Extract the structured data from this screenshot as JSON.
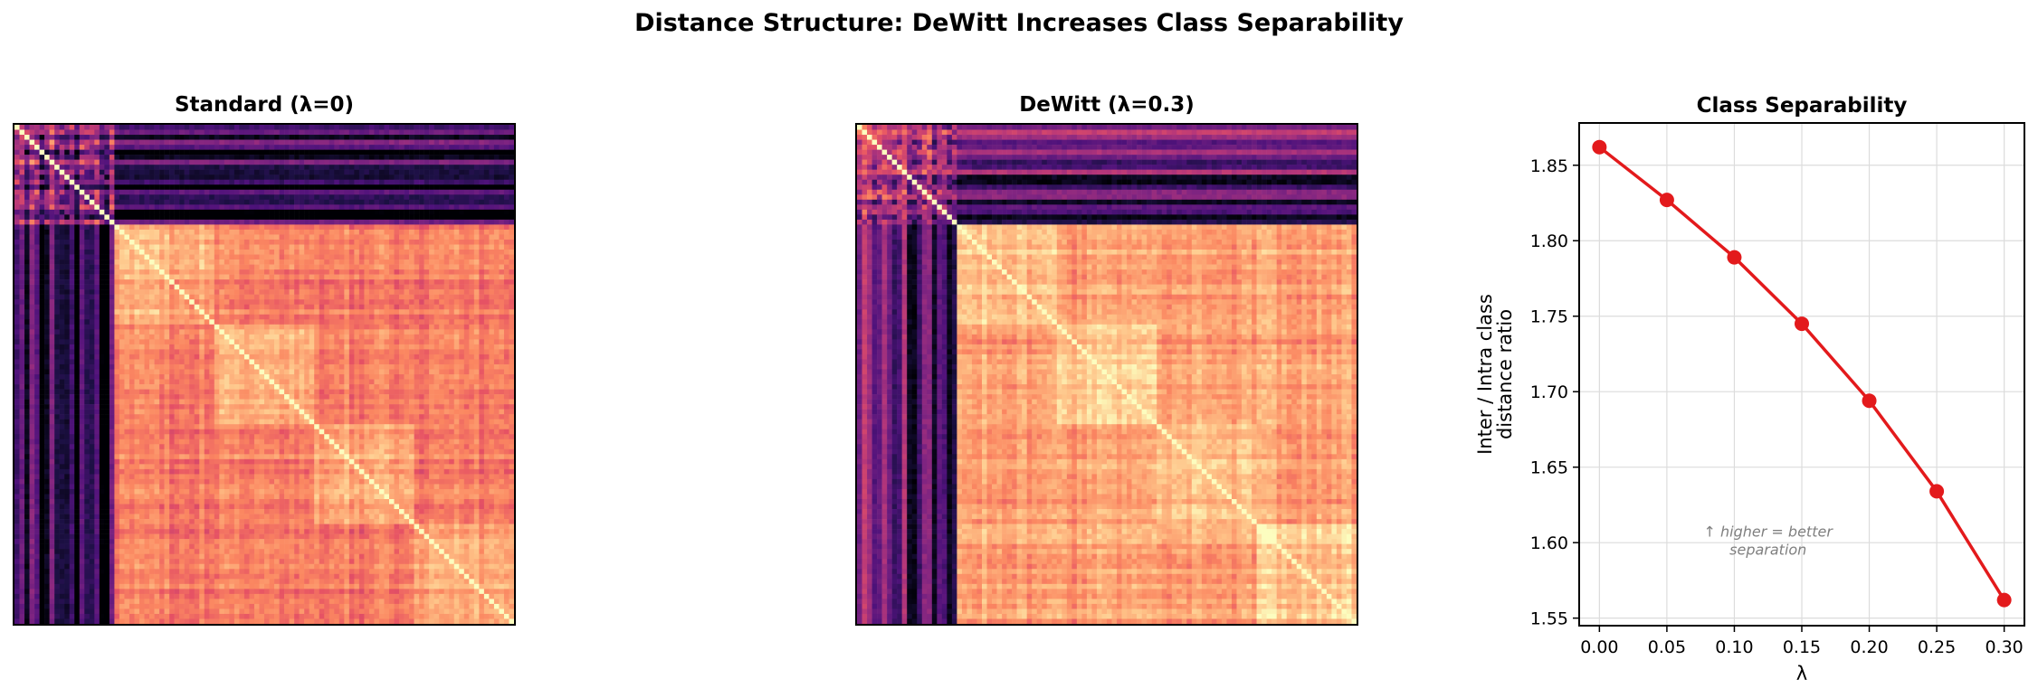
{
  "suptitle": "Distance Structure: DeWitt Increases Class Separability",
  "chart_data": [
    {
      "type": "heatmap",
      "title": "Standard (λ=0)",
      "colormap": "magma",
      "grid_size": 100,
      "class_boundaries": [
        20,
        40,
        60,
        80
      ],
      "diagonal": "zero distance (lightest)",
      "description_values": {
        "block_1_intra_level": 0.35,
        "block_1_vs_rest_level": 0.12,
        "rest_intra_level": 0.82,
        "rest_inter_level": 0.72
      }
    },
    {
      "type": "heatmap",
      "title": "DeWitt (λ=0.3)",
      "colormap": "magma",
      "grid_size": 100,
      "class_boundaries": [
        20,
        40,
        60,
        80
      ],
      "diagonal": "zero distance (lightest)",
      "description_values": {
        "block_1_intra_level": 0.45,
        "block_1_vs_rest_level": 0.28,
        "rest_intra_level": 0.88,
        "rest_inter_level": 0.8
      }
    },
    {
      "type": "line",
      "title": "Class Separability",
      "xlabel": "λ",
      "ylabel_lines": [
        "Inter / Intra class",
        "distance ratio"
      ],
      "x": [
        0.0,
        0.05,
        0.1,
        0.15,
        0.2,
        0.25,
        0.3
      ],
      "y": [
        1.862,
        1.827,
        1.789,
        1.745,
        1.694,
        1.634,
        1.562
      ],
      "xlim": [
        -0.015,
        0.315
      ],
      "ylim": [
        1.545,
        1.878
      ],
      "xticks": [
        "0.00",
        "0.05",
        "0.10",
        "0.15",
        "0.20",
        "0.25",
        "0.30"
      ],
      "xtick_values": [
        0.0,
        0.05,
        0.1,
        0.15,
        0.2,
        0.25,
        0.3
      ],
      "yticks": [
        "1.55",
        "1.60",
        "1.65",
        "1.70",
        "1.75",
        "1.80",
        "1.85"
      ],
      "ytick_values": [
        1.55,
        1.6,
        1.65,
        1.7,
        1.75,
        1.8,
        1.85
      ],
      "grid": true,
      "line_color": "#e31a1c",
      "annotation_lines": [
        "↑ higher = better",
        "separation"
      ],
      "annotation_x": 0.125,
      "annotation_y": 1.604
    }
  ]
}
